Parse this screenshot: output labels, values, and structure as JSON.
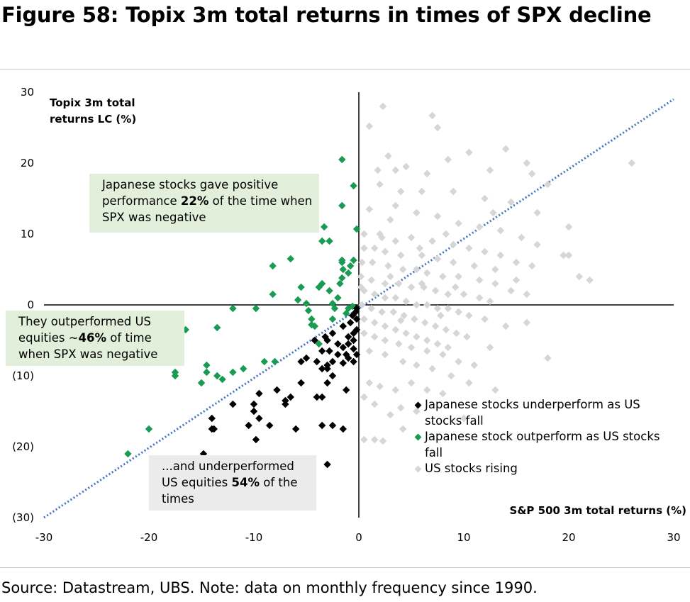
{
  "title": "Figure 58: Topix 3m total returns in times of SPX decline",
  "source": "Source: Datastream, UBS. Note: data on monthly frequency since 1990.",
  "colors": {
    "underperform": "#000000",
    "outperform": "#1a9b52",
    "rising": "#d6d6d6",
    "trendline": "#4472c4"
  },
  "annotations": {
    "positive": {
      "pre": "Japanese stocks gave positive performance ",
      "pct": "22%",
      "post": " of the time when SPX was negative"
    },
    "outperformed": {
      "pre": "They outperformed US equities ~",
      "pct": "46%",
      "post": " of time when SPX was negative"
    },
    "underperformed": {
      "pre": "...and underperformed US equities ",
      "pct": "54%",
      "post": " of the times"
    }
  },
  "chart_data": {
    "type": "scatter",
    "xlabel": "S&P 500 3m total returns (%)",
    "ylabel": "Topix 3m total returns LC (%)",
    "xlim": [
      -30,
      30
    ],
    "ylim": [
      -30,
      30
    ],
    "x_ticks": [
      "-30",
      "-20",
      "-10",
      "0",
      "10",
      "20",
      "30"
    ],
    "y_ticks": [
      "(30)",
      "(20)",
      "(10)",
      "0",
      "10",
      "20",
      "30"
    ],
    "x_tick_values": [
      -30,
      -20,
      -10,
      0,
      10,
      20,
      30
    ],
    "y_tick_values": [
      -30,
      -20,
      -10,
      0,
      10,
      20,
      30
    ],
    "reference_line": {
      "style": "dotted",
      "from": [
        -30,
        -30
      ],
      "to": [
        30,
        29
      ]
    },
    "series": [
      {
        "name": "Japanese stocks underperform as US stocks fall",
        "color": "#000000",
        "points": [
          [
            -14.8,
            -21
          ],
          [
            -3,
            -22.5
          ],
          [
            -14,
            -16
          ],
          [
            -13.8,
            -17.5
          ],
          [
            -14,
            -17.5
          ],
          [
            -12,
            -14
          ],
          [
            -10,
            -15
          ],
          [
            -10.5,
            -17
          ],
          [
            -9.5,
            -16
          ],
          [
            -8.5,
            -17
          ],
          [
            -9.8,
            -19
          ],
          [
            -9.5,
            -12.5
          ],
          [
            -10,
            -14
          ],
          [
            -7.8,
            -12
          ],
          [
            -7,
            -13.5
          ],
          [
            -7,
            -14
          ],
          [
            -6.5,
            -13
          ],
          [
            -6,
            -17.5
          ],
          [
            -5.5,
            -11
          ],
          [
            -5.5,
            -8
          ],
          [
            -4,
            -8
          ],
          [
            -5,
            -7.5
          ],
          [
            -4,
            -13
          ],
          [
            -3.5,
            -13
          ],
          [
            -3.5,
            -17
          ],
          [
            -2.5,
            -17
          ],
          [
            -1.5,
            -17.5
          ],
          [
            -3,
            -11
          ],
          [
            -3.5,
            -9
          ],
          [
            -3,
            -9
          ],
          [
            -2.5,
            -10
          ],
          [
            -1.2,
            -12
          ],
          [
            -3,
            -8.5
          ],
          [
            -2.5,
            -8
          ],
          [
            -2,
            -7
          ],
          [
            -1.5,
            -8.2
          ],
          [
            -1,
            -7.5
          ],
          [
            -0.5,
            -8
          ],
          [
            -0.2,
            -7
          ],
          [
            -3.5,
            -6.5
          ],
          [
            -3,
            -5
          ],
          [
            -2.5,
            -4
          ],
          [
            -3.2,
            -4.5
          ],
          [
            -2,
            -5.5
          ],
          [
            -1.5,
            -6
          ],
          [
            -1,
            -5.5
          ],
          [
            -0.5,
            -5
          ],
          [
            -1,
            -4.5
          ],
          [
            -0.5,
            -4
          ],
          [
            -0.2,
            -3.5
          ],
          [
            -1.5,
            -3
          ],
          [
            -0.8,
            -2.5
          ],
          [
            -0.2,
            -2
          ],
          [
            -0.6,
            -1.5
          ],
          [
            -0.3,
            -1
          ],
          [
            -0.2,
            -0.5
          ],
          [
            -1.2,
            -7
          ],
          [
            -4.2,
            -5
          ],
          [
            -2.8,
            -6.5
          ],
          [
            -0.5,
            -6.2
          ]
        ]
      },
      {
        "name": "Japanese stock outperform as US stocks fall",
        "color": "#1a9b52",
        "points": [
          [
            -22,
            -21
          ],
          [
            -20,
            -17.5
          ],
          [
            -17.5,
            -9.5
          ],
          [
            -17.5,
            -10
          ],
          [
            -15,
            -11
          ],
          [
            -14.5,
            -8.5
          ],
          [
            -14.5,
            -9.5
          ],
          [
            -13.5,
            -10
          ],
          [
            -13,
            -10.5
          ],
          [
            -12,
            -9.5
          ],
          [
            -11,
            -9
          ],
          [
            -9,
            -8
          ],
          [
            -8,
            -8
          ],
          [
            -13.5,
            -3.2
          ],
          [
            -16.5,
            -3.5
          ],
          [
            -12,
            -0.5
          ],
          [
            -9.8,
            -0.5
          ],
          [
            -8.2,
            1.5
          ],
          [
            -8.2,
            5.5
          ],
          [
            -6.5,
            6.5
          ],
          [
            -5.8,
            0.7
          ],
          [
            -5.5,
            2.5
          ],
          [
            -5,
            0.2
          ],
          [
            -4.8,
            -0.8
          ],
          [
            -4.5,
            -2
          ],
          [
            -4.2,
            -3
          ],
          [
            -3.8,
            2.5
          ],
          [
            -3.5,
            3
          ],
          [
            -3.5,
            9
          ],
          [
            -3.3,
            11
          ],
          [
            -2.8,
            9
          ],
          [
            -2.8,
            2
          ],
          [
            -2.5,
            0.2
          ],
          [
            -2.3,
            -0.5
          ],
          [
            -2,
            1
          ],
          [
            -1.8,
            3
          ],
          [
            -1.6,
            3.8
          ],
          [
            -1.6,
            6
          ],
          [
            -1.5,
            5
          ],
          [
            -1.6,
            6.3
          ],
          [
            -1.6,
            14
          ],
          [
            -1.6,
            20.5
          ],
          [
            -1,
            4.5
          ],
          [
            -0.8,
            5.5
          ],
          [
            -0.5,
            6.3
          ],
          [
            -0.6,
            -0.2
          ],
          [
            -0.2,
            10.7
          ],
          [
            -0.5,
            16.8
          ],
          [
            -2.5,
            -2
          ],
          [
            -1.2,
            -1.2
          ],
          [
            -3.8,
            -5.5
          ],
          [
            -4.5,
            -2.8
          ],
          [
            -1,
            -0.5
          ]
        ]
      },
      {
        "name": "US stocks rising",
        "color": "#d6d6d6",
        "points": [
          [
            2.3,
            28
          ],
          [
            7,
            26.7
          ],
          [
            7.5,
            25
          ],
          [
            1,
            25.2
          ],
          [
            2.8,
            21
          ],
          [
            4.5,
            19.5
          ],
          [
            10.5,
            21.5
          ],
          [
            14,
            22
          ],
          [
            16,
            20
          ],
          [
            1.8,
            19
          ],
          [
            3.5,
            19
          ],
          [
            6.5,
            18.5
          ],
          [
            8.5,
            20.5
          ],
          [
            12.5,
            19
          ],
          [
            16.5,
            18.5
          ],
          [
            18,
            17
          ],
          [
            26,
            20
          ],
          [
            2,
            17
          ],
          [
            4,
            16
          ],
          [
            6,
            16
          ],
          [
            9,
            16
          ],
          [
            12,
            15
          ],
          [
            14.5,
            14.5
          ],
          [
            17,
            13
          ],
          [
            20,
            11
          ],
          [
            1,
            13.5
          ],
          [
            3,
            12
          ],
          [
            5.5,
            13
          ],
          [
            7.5,
            12.5
          ],
          [
            9.5,
            11.5
          ],
          [
            11.5,
            11
          ],
          [
            13.5,
            10.5
          ],
          [
            15.5,
            9.5
          ],
          [
            17,
            8.5
          ],
          [
            19.5,
            7
          ],
          [
            21,
            4
          ],
          [
            22,
            3.5
          ],
          [
            0.5,
            10
          ],
          [
            2,
            10
          ],
          [
            3.5,
            9
          ],
          [
            5,
            9.5
          ],
          [
            7,
            9
          ],
          [
            9,
            8.5
          ],
          [
            10.5,
            8
          ],
          [
            12,
            7.5
          ],
          [
            13.5,
            7
          ],
          [
            15,
            6
          ],
          [
            16.5,
            5.5
          ],
          [
            0.5,
            8
          ],
          [
            1.5,
            8
          ],
          [
            2.5,
            7.5
          ],
          [
            4,
            7
          ],
          [
            6,
            7
          ],
          [
            7.5,
            6.5
          ],
          [
            9,
            6
          ],
          [
            11,
            5.5
          ],
          [
            13,
            5
          ],
          [
            15,
            3.5
          ],
          [
            16,
            1.5
          ],
          [
            0.3,
            6
          ],
          [
            1.3,
            6
          ],
          [
            2.8,
            5.5
          ],
          [
            4.2,
            5
          ],
          [
            5.5,
            5
          ],
          [
            6.5,
            4.5
          ],
          [
            8,
            4
          ],
          [
            9.5,
            4
          ],
          [
            11.5,
            3.5
          ],
          [
            13,
            3
          ],
          [
            14.5,
            2
          ],
          [
            0.2,
            4
          ],
          [
            1.2,
            3.5
          ],
          [
            2.5,
            3
          ],
          [
            3.8,
            3
          ],
          [
            5,
            2.5
          ],
          [
            6.2,
            2.5
          ],
          [
            7.3,
            2
          ],
          [
            8.5,
            1.5
          ],
          [
            10,
            1.5
          ],
          [
            11.5,
            1
          ],
          [
            12.5,
            0.5
          ],
          [
            0.5,
            2
          ],
          [
            1.5,
            1.5
          ],
          [
            2.5,
            1
          ],
          [
            3.5,
            1
          ],
          [
            4.5,
            0.5
          ],
          [
            5.5,
            0
          ],
          [
            6.5,
            0
          ],
          [
            7.5,
            -0.5
          ],
          [
            8.5,
            -0.5
          ],
          [
            9.5,
            -1
          ],
          [
            10.5,
            -1.5
          ],
          [
            12,
            -2
          ],
          [
            0.3,
            0
          ],
          [
            1.2,
            -0.5
          ],
          [
            2.2,
            -1
          ],
          [
            3.3,
            -1
          ],
          [
            4.3,
            -1.5
          ],
          [
            5.3,
            -2
          ],
          [
            6.3,
            -2.5
          ],
          [
            7.3,
            -3
          ],
          [
            8.3,
            -3.5
          ],
          [
            9.3,
            -4
          ],
          [
            10.3,
            -4.5
          ],
          [
            0.5,
            -2
          ],
          [
            1.5,
            -2.5
          ],
          [
            2.5,
            -3
          ],
          [
            3.5,
            -3.5
          ],
          [
            4.5,
            -4
          ],
          [
            5.5,
            -4.5
          ],
          [
            6.5,
            -5
          ],
          [
            7.5,
            -5.5
          ],
          [
            8.5,
            -6
          ],
          [
            0.5,
            -4
          ],
          [
            1.5,
            -4.5
          ],
          [
            2.5,
            -5
          ],
          [
            3.8,
            -5.5
          ],
          [
            5,
            -6
          ],
          [
            6.5,
            -6.5
          ],
          [
            8,
            -7
          ],
          [
            9.5,
            -8
          ],
          [
            11,
            -8.5
          ],
          [
            14,
            -3
          ],
          [
            16,
            -2.5
          ],
          [
            18,
            -7.5
          ],
          [
            12.5,
            -6
          ],
          [
            1,
            -6.5
          ],
          [
            2.5,
            -7
          ],
          [
            4.2,
            -8
          ],
          [
            5.5,
            -8.5
          ],
          [
            7,
            -9
          ],
          [
            8.8,
            -10
          ],
          [
            10.5,
            -11
          ],
          [
            13,
            -12
          ],
          [
            1,
            -11
          ],
          [
            2,
            -11.5
          ],
          [
            3.5,
            -12
          ],
          [
            5,
            -11
          ],
          [
            6.5,
            -12
          ],
          [
            8,
            -12.5
          ],
          [
            0.5,
            -13
          ],
          [
            1.5,
            -14
          ],
          [
            3,
            -15.5
          ],
          [
            4,
            -14.5
          ],
          [
            5.5,
            -15
          ],
          [
            10,
            -16
          ],
          [
            0.5,
            -19
          ],
          [
            1.5,
            -19
          ],
          [
            2.3,
            -19.2
          ],
          [
            4.2,
            -17.5
          ],
          [
            0.2,
            2.5
          ],
          [
            3,
            4
          ],
          [
            6,
            3
          ],
          [
            9.2,
            2.5
          ],
          [
            4,
            -2.2
          ],
          [
            20,
            7
          ],
          [
            7.8,
            -1.5
          ],
          [
            2.2,
            9.5
          ],
          [
            5.8,
            8
          ],
          [
            8.3,
            10
          ],
          [
            3.5,
            14
          ],
          [
            12.8,
            13
          ]
        ]
      }
    ]
  }
}
